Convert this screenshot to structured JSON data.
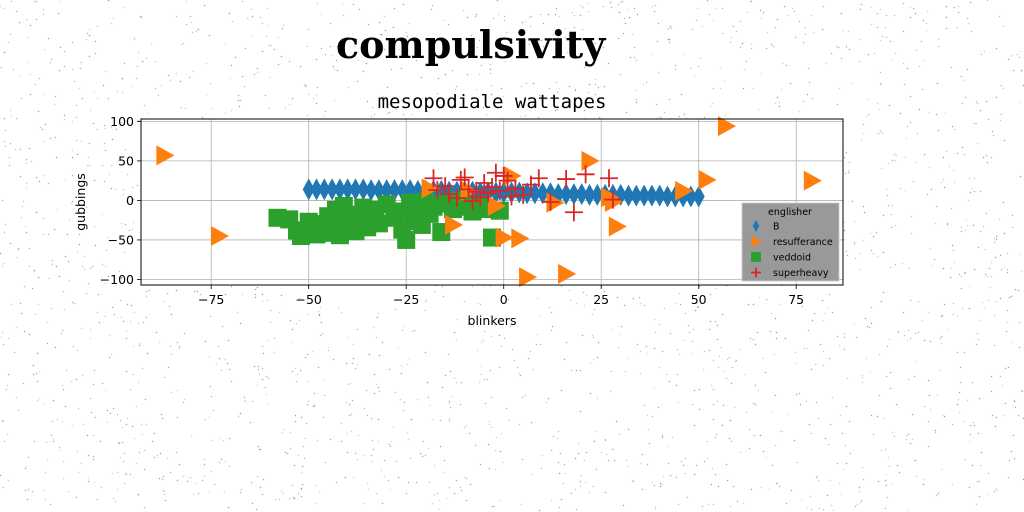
{
  "suptitle": "compulsivity",
  "chart_data": {
    "type": "scatter",
    "title": "mesopodiale wattapes",
    "xlabel": "blinkers",
    "ylabel": "gubbings",
    "xlim": [
      -93,
      87
    ],
    "ylim": [
      -107,
      103
    ],
    "xticks": [
      -75,
      -50,
      -25,
      0,
      25,
      50,
      75
    ],
    "yticks": [
      -100,
      -50,
      0,
      50,
      100
    ],
    "xtick_labels": [
      "−75",
      "−50",
      "−25",
      "0",
      "25",
      "50",
      "75"
    ],
    "ytick_labels": [
      "−100",
      "−50",
      "0",
      "50",
      "100"
    ],
    "grid": true,
    "legend": {
      "title": "englisher",
      "placement": "right",
      "background": "#999999"
    },
    "series": [
      {
        "name": "B",
        "marker": "thin_diamond",
        "color": "#1f77b4",
        "x": [
          -50,
          -48,
          -46,
          -44,
          -42,
          -40,
          -38,
          -36,
          -34,
          -32,
          -30,
          -28,
          -26,
          -24,
          -22,
          -20,
          -18,
          -16,
          -14,
          -12,
          -10,
          -8,
          -6,
          -4,
          -2,
          0,
          2,
          4,
          6,
          8,
          10,
          12,
          14,
          16,
          18,
          20,
          22,
          24,
          26,
          28,
          30,
          32,
          34,
          36,
          38,
          40,
          42,
          44,
          46,
          48,
          50
        ],
        "y": [
          14,
          14,
          14,
          14,
          14,
          14,
          14,
          14,
          13,
          13,
          13,
          13,
          13,
          13,
          12,
          12,
          12,
          12,
          11,
          11,
          11,
          11,
          10,
          10,
          10,
          10,
          10,
          10,
          9,
          9,
          9,
          9,
          8,
          8,
          8,
          8,
          7,
          7,
          7,
          7,
          7,
          6,
          6,
          6,
          6,
          6,
          5,
          5,
          5,
          5,
          5
        ]
      },
      {
        "name": "resufferance",
        "marker": "triangle_right",
        "color": "#ff7f0e",
        "x": [
          -87,
          -73,
          -19,
          -13,
          -9,
          -2,
          0,
          2,
          4,
          6,
          13,
          16,
          22,
          27,
          28,
          29,
          46,
          52,
          57,
          79
        ],
        "y": [
          57,
          -45,
          15,
          -31,
          12,
          -7,
          -47,
          31,
          -48,
          -97,
          -3,
          -93,
          50,
          4,
          -2,
          -33,
          12,
          26,
          94,
          25
        ]
      },
      {
        "name": "veddoid",
        "marker": "square",
        "color": "#2ca02c",
        "x": [
          -58,
          -55,
          -53,
          -52,
          -50,
          -48,
          -47,
          -46,
          -45,
          -44,
          -43,
          -42,
          -42,
          -41,
          -40,
          -39,
          -38,
          -37,
          -36,
          -35,
          -34,
          -33,
          -32,
          -30,
          -28,
          -27,
          -26,
          -25,
          -24,
          -23,
          -22,
          -21,
          -20,
          -19,
          -18,
          -16,
          -15,
          -13,
          -11,
          -10,
          -8,
          -6,
          -4,
          -3,
          -1
        ],
        "y": [
          -22,
          -24,
          -38,
          -45,
          -27,
          -43,
          -30,
          -41,
          -20,
          -36,
          -12,
          -25,
          -44,
          -7,
          -31,
          -18,
          -39,
          -24,
          -9,
          -34,
          -20,
          -12,
          -29,
          -5,
          -22,
          -14,
          -37,
          -50,
          -3,
          -26,
          -10,
          -31,
          -2,
          -17,
          -8,
          -40,
          -4,
          -11,
          0,
          -8,
          -14,
          -6,
          -11,
          -47,
          -13
        ]
      },
      {
        "name": "superheavy",
        "marker": "plus",
        "color": "#d62728",
        "x": [
          -18,
          -17,
          -15,
          -14,
          -12,
          -11,
          -10,
          -9,
          -8,
          -7,
          -6,
          -5,
          -4,
          -3,
          -2,
          -1,
          0,
          1,
          2,
          3,
          5,
          7,
          9,
          12,
          16,
          18,
          21,
          27,
          28
        ],
        "y": [
          28,
          13,
          18,
          8,
          3,
          26,
          29,
          14,
          -1,
          11,
          4,
          22,
          9,
          17,
          35,
          12,
          31,
          25,
          5,
          15,
          7,
          20,
          28,
          -2,
          27,
          -15,
          33,
          28,
          1
        ]
      }
    ]
  }
}
